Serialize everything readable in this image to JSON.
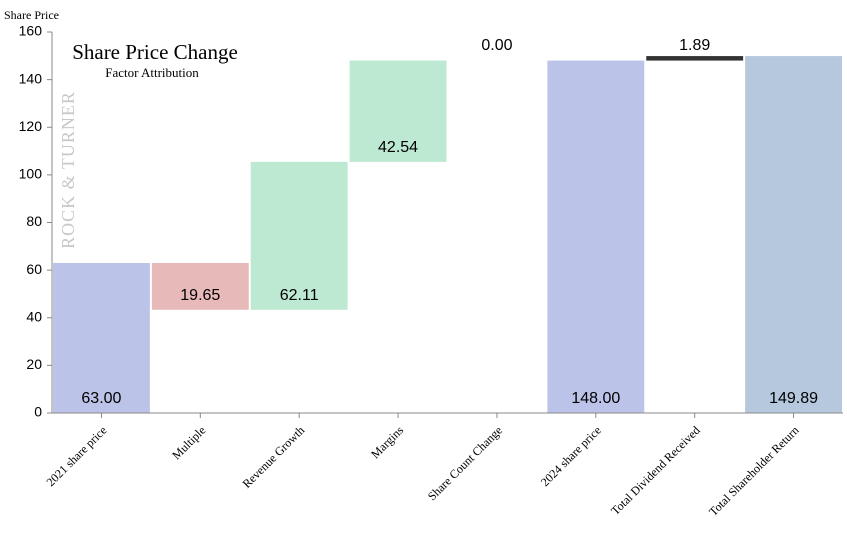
{
  "chart_data": {
    "type": "waterfall",
    "title": "Share Price Change",
    "subtitle": "Factor Attribution",
    "y_label": "Share Price",
    "watermark": "ROCK & TURNER",
    "categories": [
      "2021 share price",
      "Multiple",
      "Revenue Growth",
      "Margins",
      "Share Count Change",
      "2024 share price",
      "Total Dividend Received",
      "Total Shareholder Return"
    ],
    "values": [
      63.0,
      19.65,
      62.11,
      42.54,
      0.0,
      148.0,
      1.89,
      149.89
    ],
    "value_labels": [
      "63.00",
      "19.65",
      "62.11",
      "42.54",
      "0.00",
      "148.00",
      "1.89",
      "149.89"
    ],
    "steps": [
      "total",
      "decrease",
      "increase",
      "increase",
      "increase",
      "total",
      "increase",
      "total"
    ],
    "colors": [
      "#bcc3e8",
      "#e8b9b9",
      "#bde8d1",
      "#bde8d1",
      "#bde8d1",
      "#bcc3e8",
      "#333333",
      "#b5c8de"
    ],
    "ylim": [
      0,
      160
    ],
    "yticks": [
      0,
      20,
      40,
      60,
      80,
      100,
      120,
      140,
      160
    ]
  }
}
